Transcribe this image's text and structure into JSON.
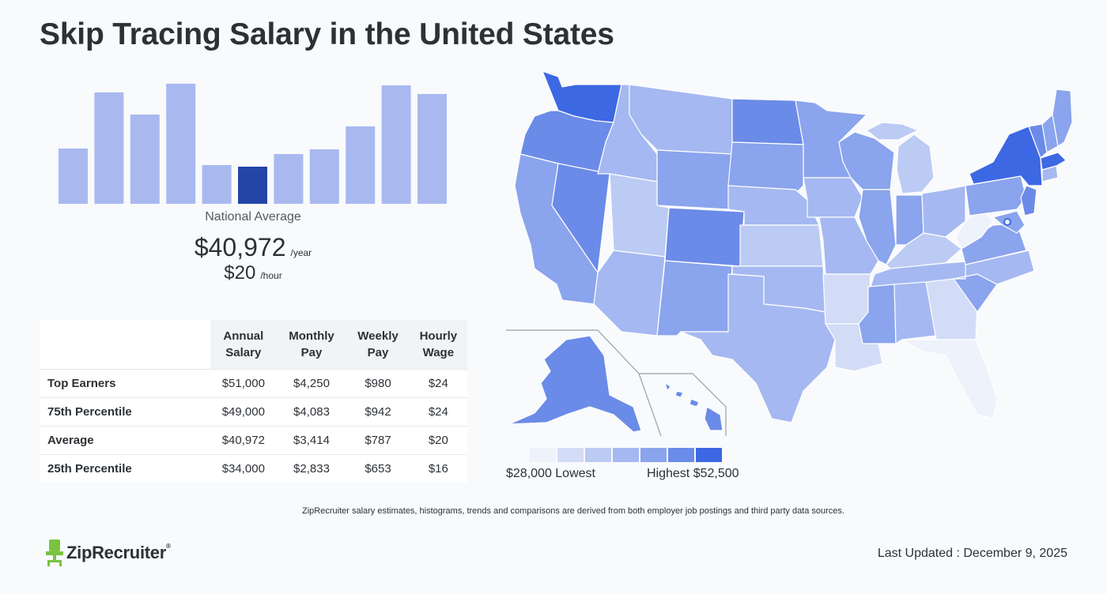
{
  "title": "Skip Tracing Salary in the United States",
  "national": {
    "label": "National Average",
    "annual": "$40,972",
    "annual_unit": "/year",
    "hourly": "$20",
    "hourly_unit": "/hour"
  },
  "chart_data": {
    "type": "bar",
    "title": "",
    "xlabel": "",
    "ylabel": "",
    "values": [
      70,
      141,
      113,
      152,
      49,
      47,
      63,
      69,
      98,
      150,
      139
    ],
    "highlight_index": 5,
    "colors": {
      "bar": "#a9b9f0",
      "highlight": "#2445a6"
    }
  },
  "table": {
    "headers": [
      [
        "Annual",
        "Salary"
      ],
      [
        "Monthly",
        "Pay"
      ],
      [
        "Weekly",
        "Pay"
      ],
      [
        "Hourly",
        "Wage"
      ]
    ],
    "rows": [
      {
        "label": "Top Earners",
        "annual": "$51,000",
        "monthly": "$4,250",
        "weekly": "$980",
        "hourly": "$24"
      },
      {
        "label": "75th Percentile",
        "annual": "$49,000",
        "monthly": "$4,083",
        "weekly": "$942",
        "hourly": "$24"
      },
      {
        "label": "Average",
        "annual": "$40,972",
        "monthly": "$3,414",
        "weekly": "$787",
        "hourly": "$20"
      },
      {
        "label": "25th Percentile",
        "annual": "$34,000",
        "monthly": "$2,833",
        "weekly": "$653",
        "hourly": "$16"
      }
    ]
  },
  "legend": {
    "low_label": "$28,000 Lowest",
    "high_label": "Highest $52,500",
    "colors": [
      "#eef2fb",
      "#d2dcf7",
      "#bccbf4",
      "#a5b8f1",
      "#8aa4ed",
      "#6b8be8",
      "#3d68e3"
    ]
  },
  "disclaimer": "ZipRecruiter salary estimates, histograms, trends and comparisons are derived from both employer job postings and third party data sources.",
  "logo": {
    "name": "ZipRecruiter",
    "reg": "®",
    "icon": "chair-icon",
    "color": "#7cc242"
  },
  "last_updated": "Last Updated : December 9, 2025"
}
